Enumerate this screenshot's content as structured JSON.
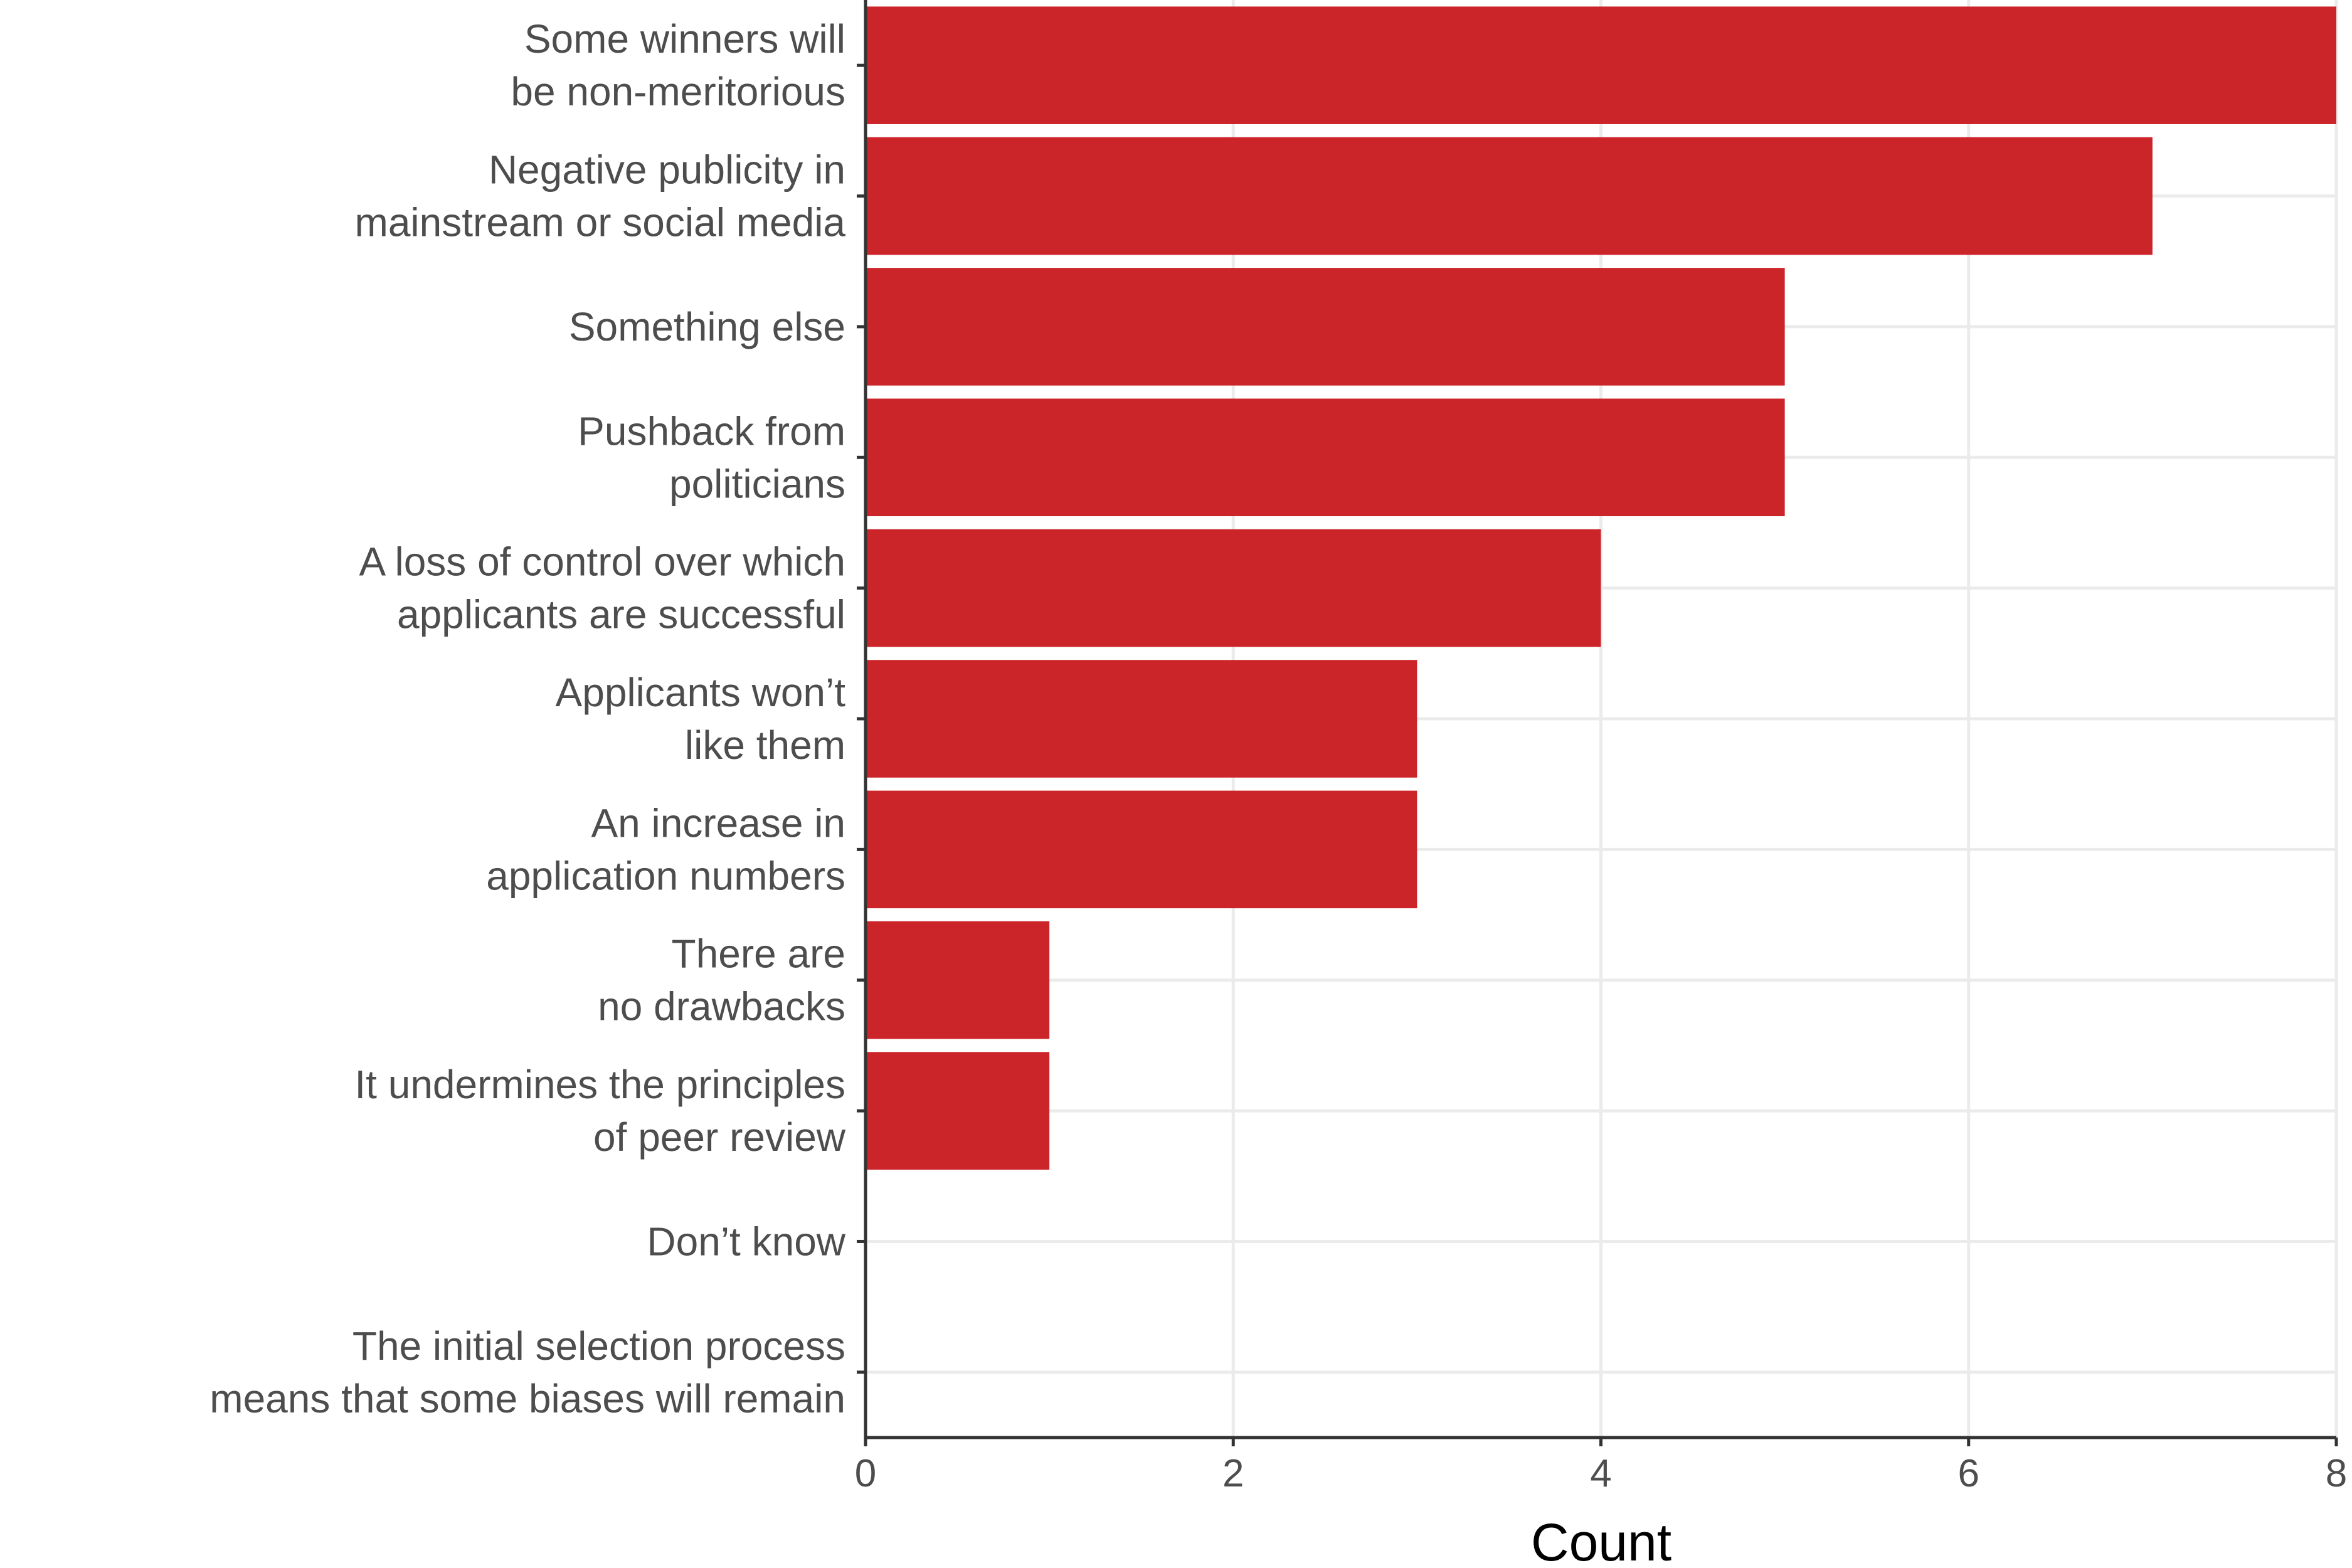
{
  "chart_data": {
    "type": "bar",
    "orientation": "horizontal",
    "categories": [
      [
        "Some winners will",
        "be non-meritorious"
      ],
      [
        "Negative publicity in",
        "mainstream or social media"
      ],
      [
        "Something else"
      ],
      [
        "Pushback from",
        "politicians"
      ],
      [
        "A loss of control over which",
        "applicants are successful"
      ],
      [
        "Applicants won’t",
        "like them"
      ],
      [
        "An increase in",
        "application numbers"
      ],
      [
        "There are",
        "no drawbacks"
      ],
      [
        "It undermines the principles",
        "of peer review"
      ],
      [
        "Don’t know"
      ],
      [
        "The initial selection process",
        "means that some biases will remain"
      ]
    ],
    "values": [
      8,
      7,
      5,
      5,
      4,
      3,
      3,
      1,
      1,
      0,
      0
    ],
    "xlabel": "Count",
    "ylabel": "",
    "xlim": [
      0,
      8
    ],
    "xticks": [
      0,
      2,
      4,
      6,
      8
    ],
    "grid": true,
    "bar_color": "#cc2529"
  }
}
